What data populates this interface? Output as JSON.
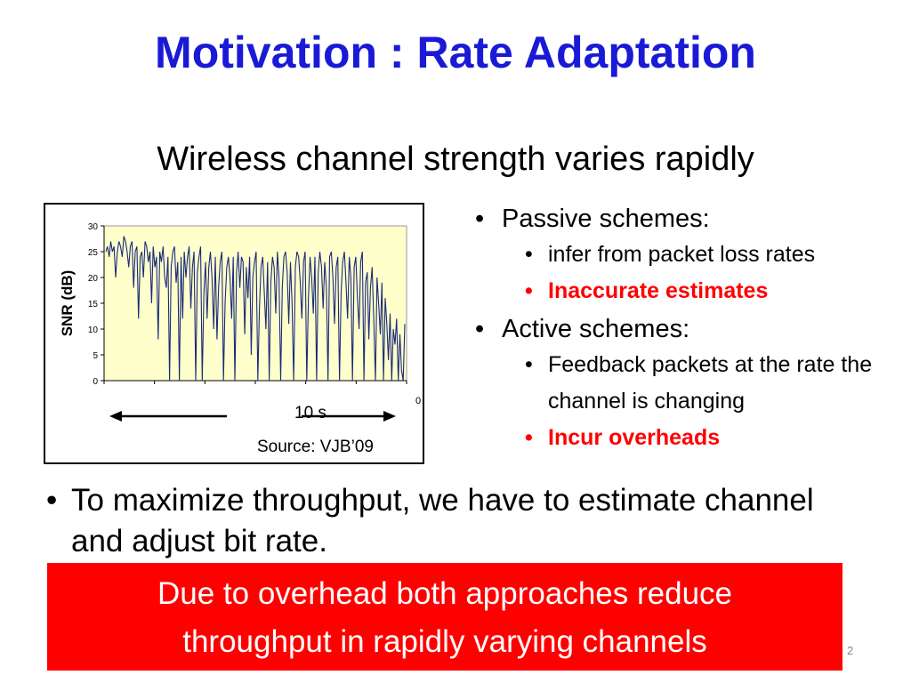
{
  "colors": {
    "title": "#1a1ad6",
    "accent_red": "#ff0000",
    "plot_bg": "#ffffcc",
    "series": "#1a2a7a"
  },
  "slide": {
    "title": "Motivation : Rate Adaptation",
    "subtitle": "Wireless channel strength varies rapidly",
    "figure": {
      "arrow_label": "10 s",
      "source": "Source: VJB’09",
      "axis_stub": "0"
    },
    "right_list": [
      {
        "label": "Passive schemes:",
        "sub": [
          {
            "text": "infer from packet loss rates",
            "highlight": false
          },
          {
            "text": "Inaccurate estimates",
            "highlight": true
          }
        ]
      },
      {
        "label": "Active schemes:",
        "sub": [
          {
            "text": "Feedback packets at the rate the channel is changing",
            "highlight": false
          },
          {
            "text": "Incur overheads",
            "highlight": true
          }
        ]
      }
    ],
    "bottom_bullet": "To maximize throughput, we have to estimate channel and adjust bit rate.",
    "callout_lines": [
      "Due to overhead both approaches reduce",
      "throughput in rapidly varying channels"
    ],
    "page_number": "2"
  },
  "chart_data": {
    "type": "line",
    "title": "",
    "xlabel": "",
    "ylabel": "SNR (dB)",
    "ylim": [
      0,
      30
    ],
    "yticks": [
      0,
      5,
      10,
      15,
      20,
      25,
      30
    ],
    "grid": false,
    "series": [
      {
        "values": [
          25,
          26,
          24,
          27,
          25,
          26,
          20,
          25,
          27,
          26,
          24,
          28,
          27,
          25,
          22,
          26,
          27,
          18,
          25,
          26,
          12,
          24,
          25,
          20,
          27,
          26,
          23,
          25,
          15,
          26,
          22,
          24,
          8,
          25,
          23,
          26,
          20,
          18,
          24,
          0,
          22,
          25,
          26,
          19,
          23,
          0,
          24,
          12,
          25,
          20,
          24,
          26,
          14,
          22,
          25,
          0,
          21,
          24,
          26,
          0,
          17,
          23,
          12,
          22,
          25,
          20,
          10,
          24,
          8,
          18,
          23,
          25,
          0,
          15,
          22,
          24,
          20,
          12,
          24,
          0,
          21,
          25,
          18,
          24,
          23,
          9,
          22,
          16,
          24,
          5,
          20,
          23,
          25,
          0,
          14,
          22,
          24,
          17,
          10,
          23,
          0,
          19,
          24,
          22,
          13,
          25,
          20,
          0,
          18,
          24,
          25,
          21,
          11,
          23,
          15,
          0,
          22,
          25,
          24,
          19,
          12,
          23,
          25,
          0,
          16,
          24,
          20,
          13,
          24,
          0,
          21,
          25,
          22,
          14,
          23,
          18,
          0,
          24,
          25,
          20,
          11,
          22,
          24,
          0,
          17,
          23,
          25,
          19,
          12,
          24,
          20,
          0,
          22,
          24,
          16,
          10,
          23,
          25,
          0,
          19,
          21,
          8,
          18,
          22,
          12,
          0,
          20,
          15,
          9,
          19,
          0,
          16,
          11,
          4,
          13,
          0,
          10,
          7,
          12,
          0,
          9,
          2,
          0,
          11
        ]
      }
    ]
  }
}
